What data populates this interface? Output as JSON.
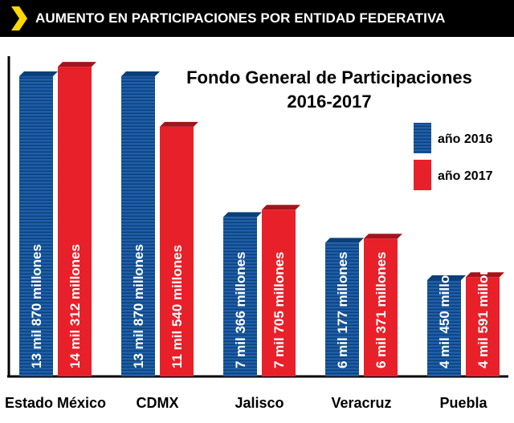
{
  "header": {
    "title": "AUMENTO EN PARTICIPACIONES POR ENTIDAD FEDERATIVA"
  },
  "chart_data": {
    "type": "bar",
    "title": "Fondo General de Participaciones",
    "subtitle": "2016-2017",
    "categories": [
      "Estado México",
      "CDMX",
      "Jalisco",
      "Veracruz",
      "Puebla"
    ],
    "series": [
      {
        "name": "año 2016",
        "color": "#1f5fa8",
        "values": [
          13870,
          13870,
          7366,
          6177,
          4450
        ],
        "labels": [
          "13 mil 870 millones",
          "13 mil 870 millones",
          "7 mil 366 millones",
          "6 mil 177 millones",
          "4 mil 450 millones"
        ]
      },
      {
        "name": "año 2017",
        "color": "#e8202a",
        "values": [
          14312,
          11540,
          7705,
          6371,
          4591
        ],
        "labels": [
          "14 mil 312 millones",
          "11 mil 540 millones",
          "7 mil 705 millones",
          "6 mil 371 millones",
          "4 mil 591 millones"
        ]
      }
    ],
    "unit": "millones",
    "xlabel": "",
    "ylabel": "",
    "ylim": [
      0,
      14500
    ],
    "grid": false,
    "legend_position": "right"
  }
}
